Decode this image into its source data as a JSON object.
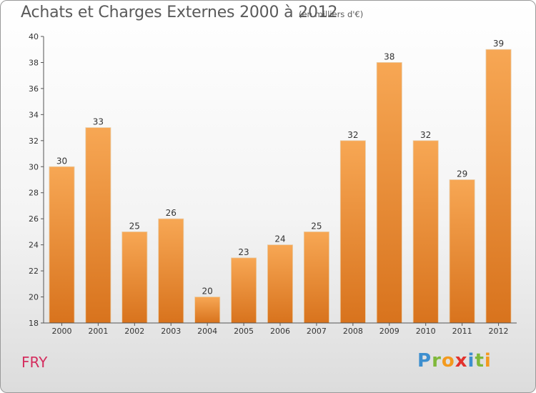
{
  "header": {
    "title": "Achats et Charges Externes 2000 à 2012",
    "unit": "(en milliers d'€)"
  },
  "footer": {
    "city": "FRY",
    "brand": "Proxiti"
  },
  "colors": {
    "bar_light": "#f7a754",
    "bar_dark": "#d8731d",
    "city": "#d42d5e",
    "axis": "#555555"
  },
  "chart_data": {
    "type": "bar",
    "title": "Achats et Charges Externes 2000 à 2012",
    "subtitle": "(en milliers d'€)",
    "categories": [
      "2000",
      "2001",
      "2002",
      "2003",
      "2004",
      "2005",
      "2006",
      "2007",
      "2008",
      "2009",
      "2010",
      "2011",
      "2012"
    ],
    "values": [
      30,
      33,
      25,
      26,
      20,
      23,
      24,
      25,
      32,
      38,
      32,
      29,
      39
    ],
    "ylim": [
      18,
      40
    ],
    "yticks": [
      18,
      20,
      22,
      24,
      26,
      28,
      30,
      32,
      34,
      36,
      38,
      40
    ],
    "grid": false,
    "legend": "none"
  }
}
